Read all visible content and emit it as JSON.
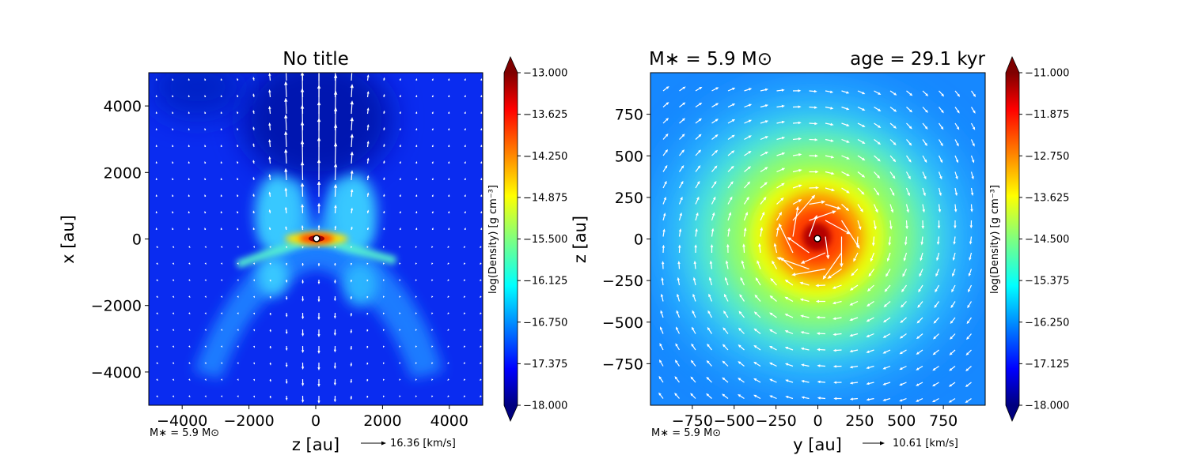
{
  "chart_data": [
    {
      "type": "heatmap",
      "title": "No title",
      "xlabel": "z [au]",
      "ylabel": "x [au]",
      "xlim": [
        -5000,
        5000
      ],
      "ylim": [
        -5000,
        5000
      ],
      "xticks": [
        -4000,
        -2000,
        0,
        2000,
        4000
      ],
      "yticks": [
        -4000,
        -2000,
        0,
        2000,
        4000
      ],
      "xtick_labels": [
        "−4000",
        "−2000",
        "0",
        "2000",
        "4000"
      ],
      "ytick_labels": [
        "−4000",
        "−2000",
        "0",
        "2000",
        "4000"
      ],
      "colorbar": {
        "label": "log(Density) [g cm⁻³]",
        "min": -18.0,
        "max": -13.0,
        "ticks": [
          "−13.000",
          "−13.625",
          "−14.250",
          "−14.875",
          "−15.500",
          "−16.125",
          "−16.750",
          "−17.375",
          "−18.000"
        ]
      },
      "annotation_left": "M∗ = 5.9 M⊙",
      "quiver_key": "16.36 [km/s]",
      "description_features": [
        "bipolar outflow along z=0 axis",
        "dense disk at origin"
      ]
    },
    {
      "type": "heatmap",
      "title_left": "M∗ = 5.9 M⊙",
      "title_right": "age = 29.1 kyr",
      "xlabel": "y [au]",
      "ylabel": "z [au]",
      "xlim": [
        -1000,
        1000
      ],
      "ylim": [
        -1000,
        1000
      ],
      "xticks": [
        -750,
        -500,
        -250,
        0,
        250,
        500,
        750
      ],
      "yticks": [
        -750,
        -500,
        -250,
        0,
        250,
        500,
        750
      ],
      "xtick_labels": [
        "−750",
        "−500",
        "−250",
        "0",
        "250",
        "500",
        "750"
      ],
      "ytick_labels": [
        "−750",
        "−500",
        "−250",
        "0",
        "250",
        "500",
        "750"
      ],
      "colorbar": {
        "label": "log(Density) [g cm⁻³]",
        "min": -18.0,
        "max": -11.0,
        "ticks": [
          "−11.000",
          "−11.875",
          "−12.750",
          "−13.625",
          "−14.500",
          "−15.375",
          "−16.250",
          "−17.125",
          "−18.000"
        ]
      },
      "annotation_left": "M∗ = 5.9 M⊙",
      "quiver_key": "10.61 [km/s]"
    }
  ],
  "colors": {
    "arrow": "#ffffff",
    "jet": [
      "#00007f",
      "#0000ff",
      "#007fff",
      "#00ffff",
      "#7fff7f",
      "#ffff00",
      "#ff7f00",
      "#ff0000",
      "#7f0000"
    ]
  }
}
